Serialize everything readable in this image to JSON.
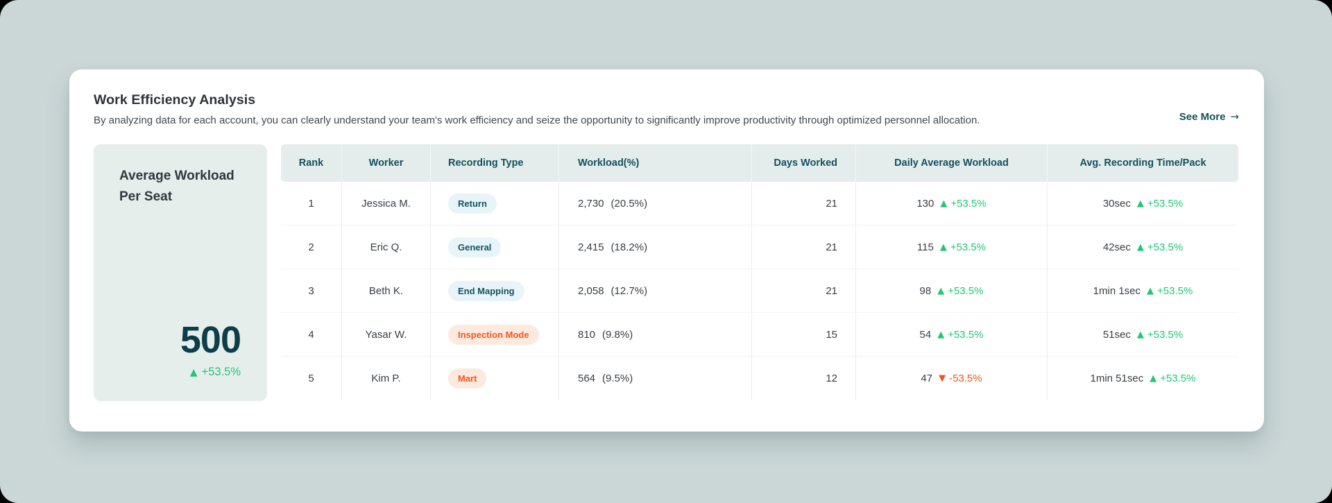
{
  "header": {
    "title": "Work Efficiency Analysis",
    "description": "By analyzing data for each account, you can clearly understand your team's work efficiency and seize the opportunity to significantly improve productivity through optimized personnel allocation.",
    "see_more_label": "See More",
    "see_more_arrow": "→"
  },
  "summary_card": {
    "title": "Average Workload Per Seat",
    "value": "500",
    "arrow": "▲",
    "change": "+53.5%",
    "trend": "up"
  },
  "table": {
    "columns": [
      "Rank",
      "Worker",
      "Recording Type",
      "Workload(%)",
      "Days Worked",
      "Daily Average Workload",
      "Avg. Recording Time/Pack"
    ],
    "rows": [
      {
        "rank": "1",
        "worker": "Jessica M.",
        "badge": {
          "label": "Return",
          "color": "teal"
        },
        "workload": {
          "value": "2,730",
          "pct": "(20.5%)"
        },
        "days": "21",
        "daily": {
          "value": "130",
          "arrow": "▲",
          "change": "+53.5%",
          "trend": "up"
        },
        "time": {
          "value": "30sec",
          "arrow": "▲",
          "change": "+53.5%",
          "trend": "up"
        }
      },
      {
        "rank": "2",
        "worker": "Eric Q.",
        "badge": {
          "label": "General",
          "color": "teal"
        },
        "workload": {
          "value": "2,415",
          "pct": "(18.2%)"
        },
        "days": "21",
        "daily": {
          "value": "115",
          "arrow": "▲",
          "change": "+53.5%",
          "trend": "up"
        },
        "time": {
          "value": "42sec",
          "arrow": "▲",
          "change": "+53.5%",
          "trend": "up"
        }
      },
      {
        "rank": "3",
        "worker": "Beth K.",
        "badge": {
          "label": "End Mapping",
          "color": "teal"
        },
        "workload": {
          "value": "2,058",
          "pct": "(12.7%)"
        },
        "days": "21",
        "daily": {
          "value": "98",
          "arrow": "▲",
          "change": "+53.5%",
          "trend": "up"
        },
        "time": {
          "value": "1min 1sec",
          "arrow": "▲",
          "change": "+53.5%",
          "trend": "up"
        }
      },
      {
        "rank": "4",
        "worker": "Yasar W.",
        "badge": {
          "label": "Inspection Mode",
          "color": "orange"
        },
        "workload": {
          "value": "810",
          "pct": "(9.8%)"
        },
        "days": "15",
        "daily": {
          "value": "54",
          "arrow": "▲",
          "change": "+53.5%",
          "trend": "up"
        },
        "time": {
          "value": "51sec",
          "arrow": "▲",
          "change": "+53.5%",
          "trend": "up"
        }
      },
      {
        "rank": "5",
        "worker": "Kim P.",
        "badge": {
          "label": "Mart",
          "color": "orange"
        },
        "workload": {
          "value": "564",
          "pct": "(9.5%)"
        },
        "days": "12",
        "daily": {
          "value": "47",
          "arrow": "▼",
          "change": "-53.5%",
          "trend": "down"
        },
        "time": {
          "value": "1min 51sec",
          "arrow": "▲",
          "change": "+53.5%",
          "trend": "up"
        }
      }
    ]
  },
  "colors": {
    "page_background": "#cbd7d7",
    "accent_teal": "#14505e",
    "summary_value": "#0d3d48",
    "positive_green": "#1fc776",
    "negative_red": "#f0521e",
    "header_background": "#e4edeb",
    "summary_background": "#e6eeec",
    "badge_teal_background": "#e7f5f8",
    "badge_orange_background": "#fdeadf"
  }
}
